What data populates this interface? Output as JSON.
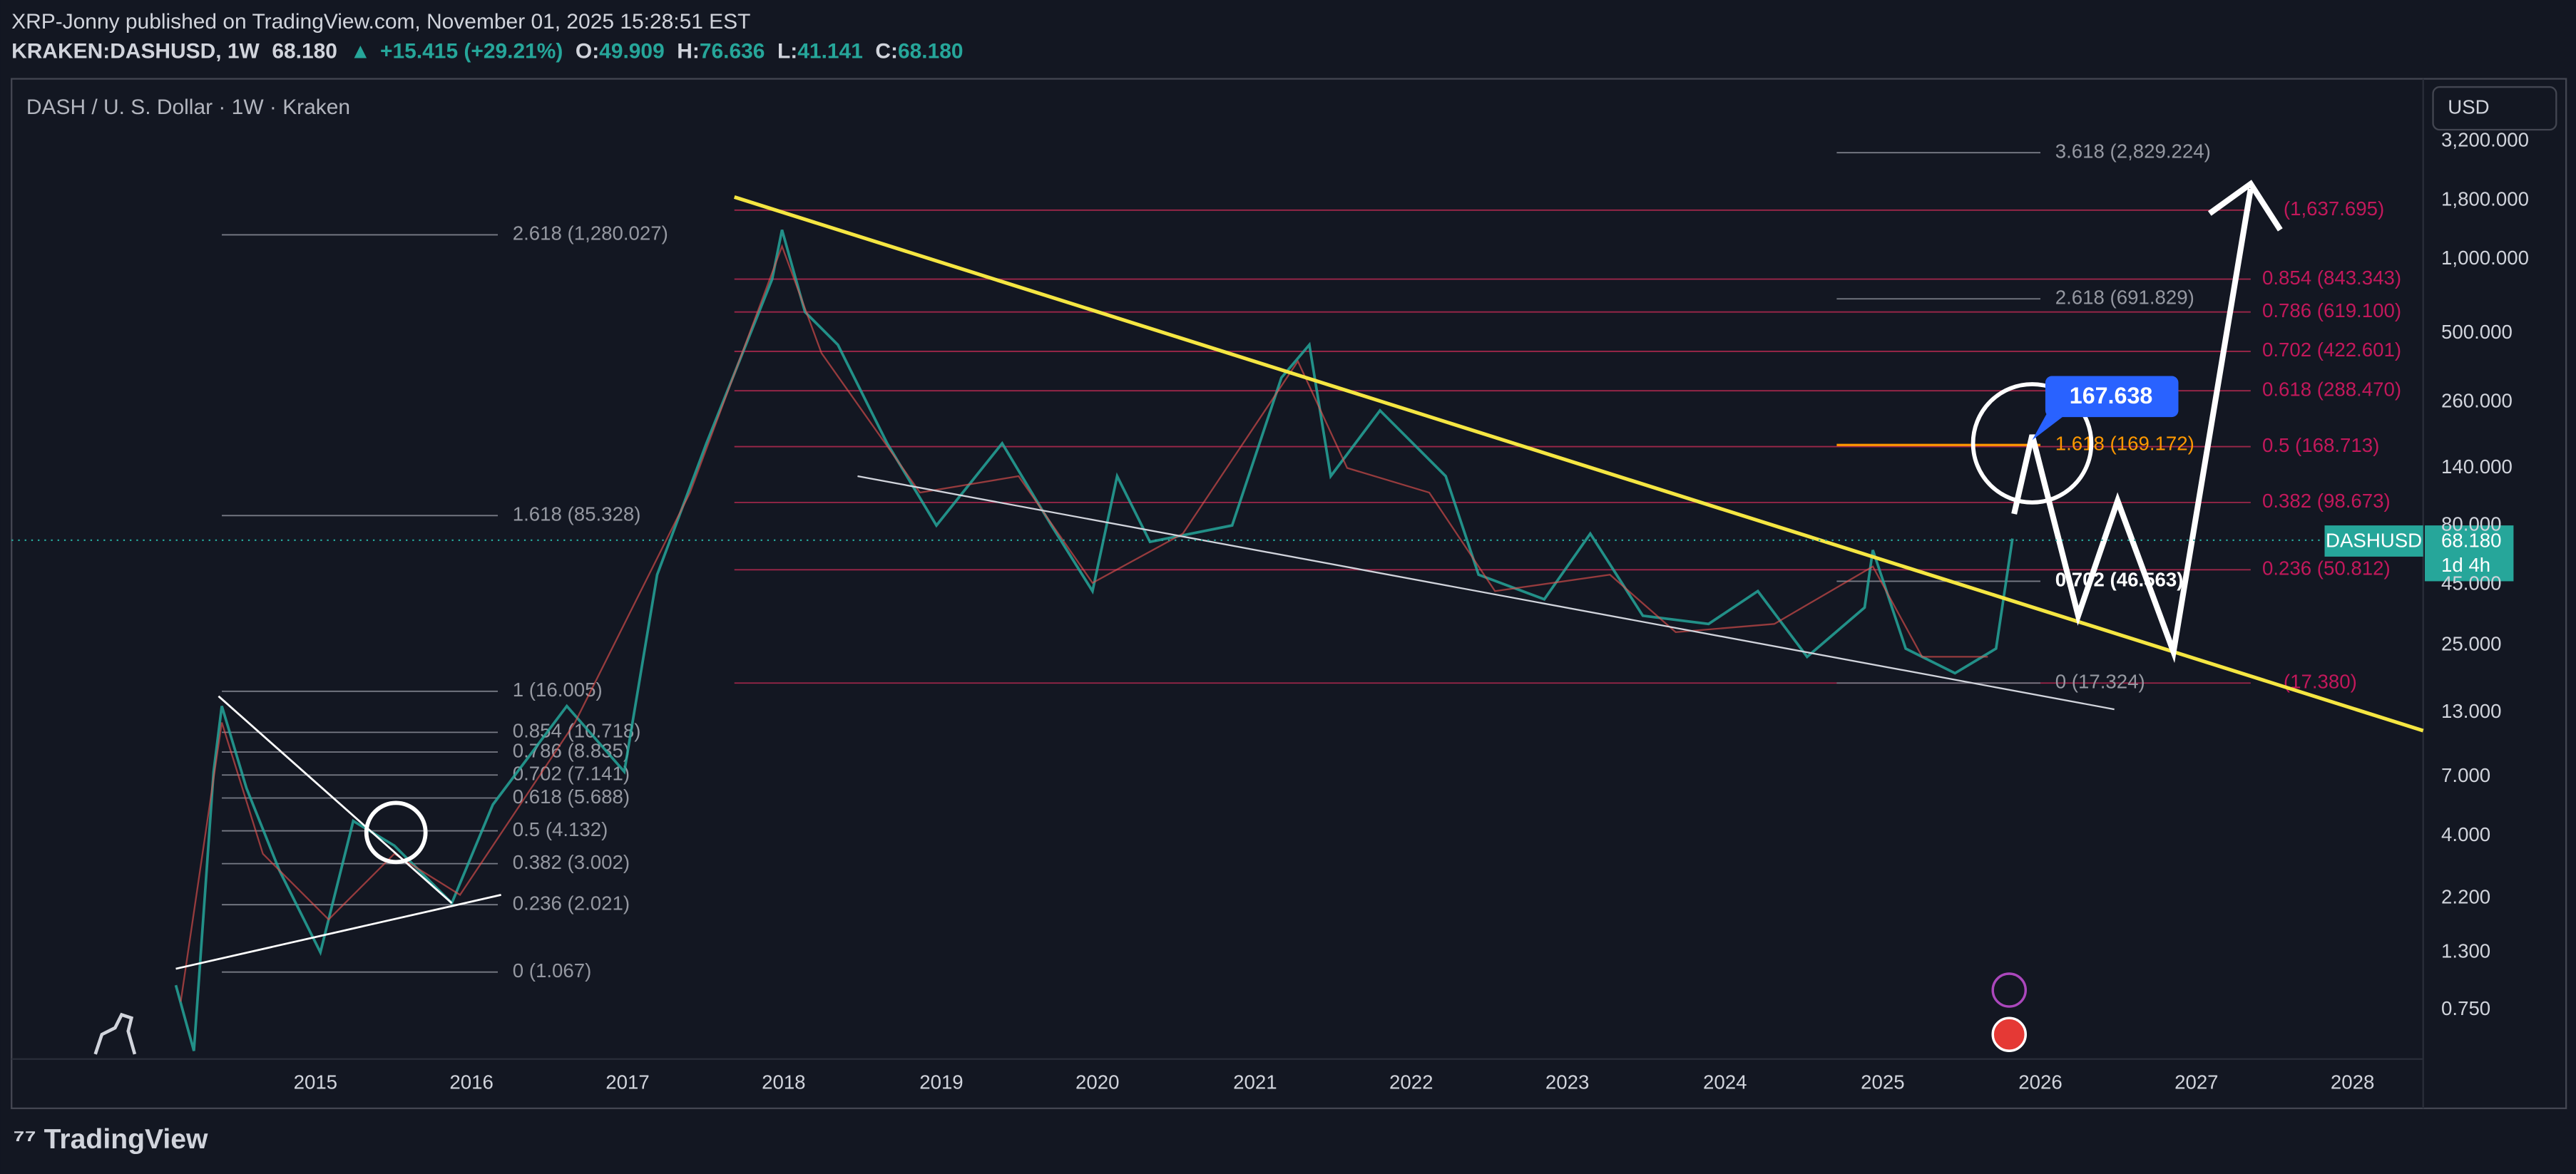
{
  "header": {
    "publisher": "XRP-Jonny published on TradingView.com, November 01, 2025 15:28:51 EST",
    "symbol": "KRAKEN:DASHUSD, 1W",
    "last": "68.180",
    "change": "+15.415 (+29.21%)",
    "ohlc": [
      {
        "key": "O:",
        "value": "49.909"
      },
      {
        "key": "H:",
        "value": "76.636"
      },
      {
        "key": "L:",
        "value": "41.141"
      },
      {
        "key": "C:",
        "value": "68.180"
      }
    ]
  },
  "chart": {
    "title": "DASH / U. S. Dollar · 1W · Kraken",
    "currency": "USD",
    "price_axis": [
      "3,200.000",
      "1,800.000",
      "1,000.000",
      "500.000",
      "260.000",
      "140.000",
      "80.000",
      "45.000",
      "25.000",
      "13.000",
      "7.000",
      "4.000",
      "2.200",
      "1.300",
      "0.750"
    ],
    "time_axis": [
      "2015",
      "2016",
      "2017",
      "2018",
      "2019",
      "2020",
      "2021",
      "2022",
      "2023",
      "2024",
      "2025",
      "2026",
      "2027",
      "2028"
    ],
    "symbol_tag": "DASHUSD",
    "price_tag": "68.180",
    "countdown": "1d 4h",
    "target": "167.638",
    "fib_left": [
      "2.618 (1,280.027)",
      "1.618 (85.328)",
      "1 (16.005)",
      "0.854 (10.718)",
      "0.786 (8.835)",
      "0.702 (7.141)",
      "0.618 (5.688)",
      "0.5 (4.132)",
      "0.382 (3.002)",
      "0.236 (2.021)",
      "0 (1.067)"
    ],
    "fib_red": [
      "(1,637.695)",
      "0.854 (843.343)",
      "0.786 (619.100)",
      "0.702 (422.601)",
      "0.618 (288.470)",
      "0.5 (168.713)",
      "0.382 (98.673)",
      "0.236 (50.812)",
      "(17.380)"
    ],
    "fib_right": [
      "3.618 (2,829.224)",
      "2.618 (691.829)",
      "1.618 (169.172)",
      "0.702 (46.563)",
      "0 (17.324)"
    ]
  },
  "footer": {
    "brand": "TradingView"
  }
}
